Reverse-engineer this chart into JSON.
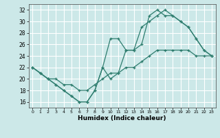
{
  "bg_color": "#cce8e8",
  "grid_color": "#ffffff",
  "line_color": "#2e7d6e",
  "xlabel": "Humidex (Indice chaleur)",
  "xlim": [
    -0.5,
    23.5
  ],
  "ylim": [
    15.0,
    33.0
  ],
  "xticks": [
    0,
    1,
    2,
    3,
    4,
    5,
    6,
    7,
    8,
    9,
    10,
    11,
    12,
    13,
    14,
    15,
    16,
    17,
    18,
    19,
    20,
    21,
    22,
    23
  ],
  "yticks": [
    16,
    18,
    20,
    22,
    24,
    26,
    28,
    30,
    32
  ],
  "line1_x": [
    0,
    1,
    2,
    3,
    4,
    5,
    6,
    7,
    8,
    9,
    10,
    11,
    12,
    13,
    14,
    15,
    16,
    17,
    18,
    19,
    20,
    21,
    22,
    23
  ],
  "line1_y": [
    22,
    21,
    20,
    19,
    18,
    17,
    16,
    16,
    18,
    22,
    20,
    21,
    25,
    25,
    29,
    30,
    31,
    32,
    31,
    30,
    29,
    27,
    25,
    24
  ],
  "line2_x": [
    0,
    1,
    2,
    3,
    4,
    5,
    6,
    7,
    8,
    9,
    10,
    11,
    12,
    13,
    14,
    15,
    16,
    17,
    18,
    19,
    20,
    21,
    22,
    23
  ],
  "line2_y": [
    22,
    21,
    20,
    20,
    19,
    19,
    18,
    18,
    19,
    20,
    21,
    21,
    22,
    22,
    23,
    24,
    25,
    25,
    25,
    25,
    25,
    24,
    24,
    24
  ],
  "line3_x": [
    0,
    1,
    2,
    3,
    4,
    5,
    6,
    7,
    8,
    9,
    10,
    11,
    12,
    13,
    14,
    15,
    16,
    17,
    18,
    19,
    20,
    21,
    22,
    23
  ],
  "line3_y": [
    22,
    21,
    20,
    19,
    18,
    17,
    16,
    16,
    18,
    22,
    27,
    27,
    25,
    25,
    26,
    31,
    32,
    31,
    31,
    30,
    29,
    27,
    25,
    24
  ]
}
